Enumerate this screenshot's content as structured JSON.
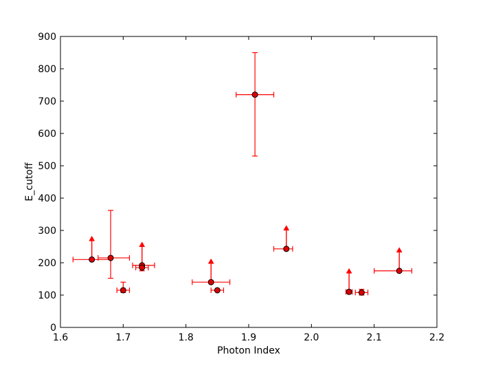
{
  "chart_data": {
    "type": "scatter",
    "title": "",
    "xlabel": "Photon Index",
    "ylabel": "E_cutoff",
    "xlim": [
      1.6,
      2.2
    ],
    "ylim": [
      0,
      900
    ],
    "xticks": [
      "1.6",
      "1.7",
      "1.8",
      "1.9",
      "2.0",
      "2.1",
      "2.2"
    ],
    "yticks": [
      "0",
      "100",
      "200",
      "300",
      "400",
      "500",
      "600",
      "700",
      "800",
      "900"
    ],
    "grid": false,
    "legend": "none",
    "colors": {
      "marker_fill": "#dd0000",
      "error_bar": "#ff0000",
      "arrow": "#ff0000"
    },
    "points": [
      {
        "x": 1.65,
        "y": 210,
        "x_low": 1.62,
        "x_high": 1.68,
        "lower_limit": true
      },
      {
        "x": 1.68,
        "y": 215,
        "x_low": 1.66,
        "x_high": 1.71,
        "y_low": 152,
        "y_high": 362,
        "lower_limit": false
      },
      {
        "x": 1.7,
        "y": 115,
        "x_low": 1.69,
        "x_high": 1.71,
        "y_low": 108,
        "y_high": 140,
        "lower_limit": false
      },
      {
        "x": 1.73,
        "y": 192,
        "x_low": 1.715,
        "x_high": 1.75,
        "lower_limit": true
      },
      {
        "x": 1.73,
        "y": 185,
        "x_low": 1.72,
        "x_high": 1.74,
        "y_low": 175,
        "y_high": 195,
        "lower_limit": false
      },
      {
        "x": 1.84,
        "y": 140,
        "x_low": 1.81,
        "x_high": 1.87,
        "lower_limit": true
      },
      {
        "x": 1.85,
        "y": 115,
        "x_low": 1.84,
        "x_high": 1.86,
        "lower_limit": false
      },
      {
        "x": 1.91,
        "y": 720,
        "x_low": 1.88,
        "x_high": 1.94,
        "y_low": 530,
        "y_high": 850,
        "lower_limit": false
      },
      {
        "x": 1.96,
        "y": 243,
        "x_low": 1.94,
        "x_high": 1.97,
        "lower_limit": true
      },
      {
        "x": 2.06,
        "y": 110,
        "x_low": 2.055,
        "x_high": 2.065,
        "lower_limit": true
      },
      {
        "x": 2.08,
        "y": 108,
        "x_low": 2.07,
        "x_high": 2.09,
        "y_low": 100,
        "y_high": 118,
        "lower_limit": false
      },
      {
        "x": 2.14,
        "y": 175,
        "x_low": 2.1,
        "x_high": 2.16,
        "lower_limit": true
      }
    ]
  }
}
